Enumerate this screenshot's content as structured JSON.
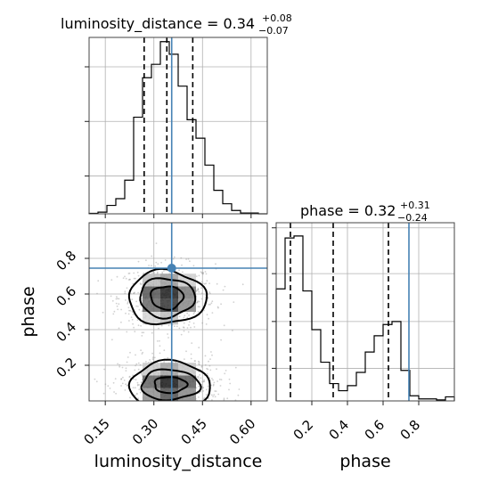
{
  "chart_data": {
    "type": "corner",
    "parameters": [
      "luminosity_distance",
      "phase"
    ],
    "titles": [
      {
        "param": "luminosity_distance",
        "text": "luminosity_distance = 0.34",
        "plus": "+0.08",
        "minus": "−0.07"
      },
      {
        "param": "phase",
        "text": "phase = 0.32",
        "plus": "+0.31",
        "minus": "−0.24"
      }
    ],
    "truth_color": "#4682b4",
    "truths": {
      "luminosity_distance": 0.355,
      "phase": 0.745
    },
    "luminosity_distance_hist": {
      "range": [
        0.1,
        0.65
      ],
      "quantiles": [
        0.27,
        0.34,
        0.42
      ],
      "edges": [
        0.1,
        0.1275,
        0.155,
        0.1825,
        0.21,
        0.2375,
        0.265,
        0.2925,
        0.32,
        0.3475,
        0.375,
        0.4025,
        0.43,
        0.4575,
        0.485,
        0.5125,
        0.54,
        0.5675,
        0.595,
        0.6225,
        0.65
      ],
      "values": [
        0.5,
        2,
        10,
        18,
        40,
        115,
        162,
        178,
        205,
        190,
        152,
        112,
        90,
        58,
        28,
        12,
        4,
        1,
        1,
        0
      ],
      "ylim": [
        0,
        210
      ],
      "ticks": [
        0.15,
        0.3,
        0.45,
        0.6
      ],
      "tick_labels": [
        "0.15",
        "0.30",
        "0.45",
        "0.60"
      ]
    },
    "phase_hist": {
      "range": [
        0.0,
        1.0
      ],
      "quantiles": [
        0.08,
        0.32,
        0.63
      ],
      "edges": [
        0.0,
        0.05,
        0.1,
        0.15,
        0.2,
        0.25,
        0.3,
        0.35,
        0.4,
        0.45,
        0.5,
        0.55,
        0.6,
        0.65,
        0.7,
        0.75,
        0.8,
        0.85,
        0.9,
        0.95,
        1.0
      ],
      "values": [
        110,
        160,
        162,
        108,
        70,
        38,
        17,
        10,
        15,
        28,
        48,
        64,
        75,
        78,
        30,
        5,
        2,
        2,
        1,
        4
      ],
      "ylim": [
        0,
        175
      ],
      "ticks": [
        0.2,
        0.4,
        0.6,
        0.8
      ],
      "tick_labels": [
        "0.2",
        "0.4",
        "0.6",
        "0.8"
      ]
    },
    "joint": {
      "xlim": [
        0.1,
        0.65
      ],
      "ylim": [
        0.0,
        1.0
      ],
      "x_ticks": [
        0.15,
        0.3,
        0.45,
        0.6
      ],
      "x_tick_labels": [
        "0.15",
        "0.30",
        "0.45",
        "0.60"
      ],
      "y_ticks": [
        0.2,
        0.4,
        0.6,
        0.8
      ],
      "y_tick_labels": [
        "0.2",
        "0.4",
        "0.6",
        "0.8"
      ],
      "modes": [
        {
          "cx": 0.34,
          "cy": 0.58,
          "contour_widths": [
            0.05,
            0.085,
            0.12
          ],
          "contour_heights": [
            0.065,
            0.11,
            0.15
          ]
        },
        {
          "cx": 0.35,
          "cy": 0.09,
          "contour_widths": [
            0.05,
            0.09,
            0.125
          ],
          "contour_heights": [
            0.045,
            0.085,
            0.13
          ]
        }
      ]
    },
    "xlabels": [
      "luminosity_distance",
      "phase"
    ],
    "ylabel": "phase",
    "grid": true
  }
}
